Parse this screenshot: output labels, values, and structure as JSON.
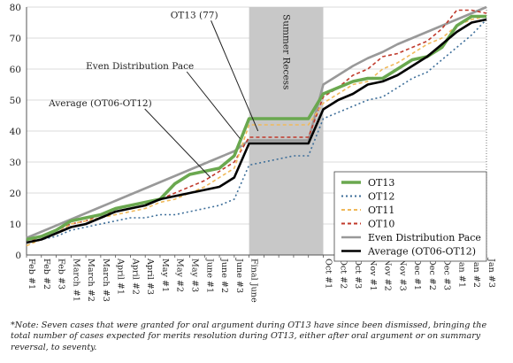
{
  "chart_data": {
    "type": "line",
    "title": "",
    "xlabel": "",
    "ylabel": "",
    "ylim": [
      0,
      80
    ],
    "yticks": [
      0,
      10,
      20,
      30,
      40,
      50,
      60,
      70,
      80
    ],
    "grid": true,
    "legend_position": "bottom-right",
    "categories": [
      "Feb #1",
      "Feb #2",
      "Feb #3",
      "March #1",
      "March #2",
      "March #3",
      "April #1",
      "April #2",
      "April #3",
      "May #1",
      "May #2",
      "May #3",
      "June #1",
      "June #2",
      "June #3",
      "Final June",
      "",
      "",
      "",
      "",
      "Oct #1",
      "Oct #2",
      "Oct #3",
      "Nov #1",
      "Nov #2",
      "Nov #3",
      "Dec #1",
      "Dec #2",
      "Dec #3",
      "Jan #1",
      "Jan #2",
      "Jan #3"
    ],
    "shaded_region": {
      "label": "Summer Recess",
      "from_index": 15,
      "to_index": 20
    },
    "series": [
      {
        "name": "OT13",
        "color": "#6aa84f",
        "dash": "solid",
        "width": 3.6,
        "values": [
          5,
          6,
          8,
          11,
          12,
          13,
          15,
          16,
          17,
          18,
          23,
          26,
          27,
          28,
          32,
          44,
          44,
          44,
          44,
          44,
          52,
          54,
          56,
          57,
          57,
          60,
          63,
          64,
          67,
          74,
          77,
          77
        ]
      },
      {
        "name": "OT12",
        "color": "#3d6e99",
        "dash": "dotted",
        "width": 1.6,
        "values": [
          4,
          5,
          6,
          8,
          9,
          10,
          11,
          12,
          12,
          13,
          13,
          14,
          15,
          16,
          18,
          29,
          30,
          31,
          32,
          32,
          44,
          46,
          48,
          50,
          51,
          54,
          57,
          59,
          63,
          67,
          71,
          76
        ]
      },
      {
        "name": "OT11",
        "color": "#f0b95a",
        "dash": "dashed",
        "width": 1.6,
        "values": [
          3,
          5,
          7,
          10,
          11,
          12,
          13,
          14,
          15,
          17,
          18,
          20,
          22,
          25,
          28,
          42,
          42,
          42,
          42,
          42,
          49,
          52,
          55,
          56,
          60,
          62,
          65,
          68,
          70,
          74,
          76,
          77
        ]
      },
      {
        "name": "OT10",
        "color": "#c0392b",
        "dash": "dashed",
        "width": 1.6,
        "values": [
          4,
          6,
          8,
          10,
          11,
          13,
          14,
          15,
          16,
          18,
          20,
          22,
          24,
          27,
          30,
          38,
          38,
          38,
          38,
          38,
          51,
          54,
          58,
          60,
          64,
          65,
          67,
          69,
          73,
          79,
          79,
          78
        ]
      },
      {
        "name": "Even Distribution Pace",
        "color": "#999999",
        "dash": "solid",
        "width": 2.6,
        "values": [
          5.5,
          7.5,
          9.5,
          11.5,
          13.5,
          15.5,
          17.5,
          19.5,
          21.5,
          23.5,
          25.5,
          27.5,
          29.5,
          31.5,
          33.5,
          37,
          37,
          37,
          37,
          37,
          55,
          58,
          61,
          63.5,
          65.5,
          68,
          70,
          72,
          74,
          76,
          78,
          80
        ]
      },
      {
        "name": "Average (OT06-OT12)",
        "color": "#000000",
        "dash": "solid",
        "width": 2.6,
        "values": [
          4,
          5,
          7,
          9,
          10,
          12,
          14,
          15,
          16,
          18,
          19,
          20,
          21,
          22,
          25,
          36,
          36,
          36,
          36,
          36,
          47,
          50,
          52,
          55,
          56,
          58,
          61,
          64,
          68,
          72,
          75,
          76
        ]
      }
    ],
    "annotations": [
      {
        "text": "OT13 (77)"
      },
      {
        "text": "Even Distribution Pace"
      },
      {
        "text": "Average (OT06-OT12)"
      }
    ]
  },
  "note": "*Note: Seven cases that were granted for oral argument during OT13 have since been dismissed, bringing the total number of cases expected for merits resolution during OT13, either after oral argument or on summary reversal, to seventy."
}
